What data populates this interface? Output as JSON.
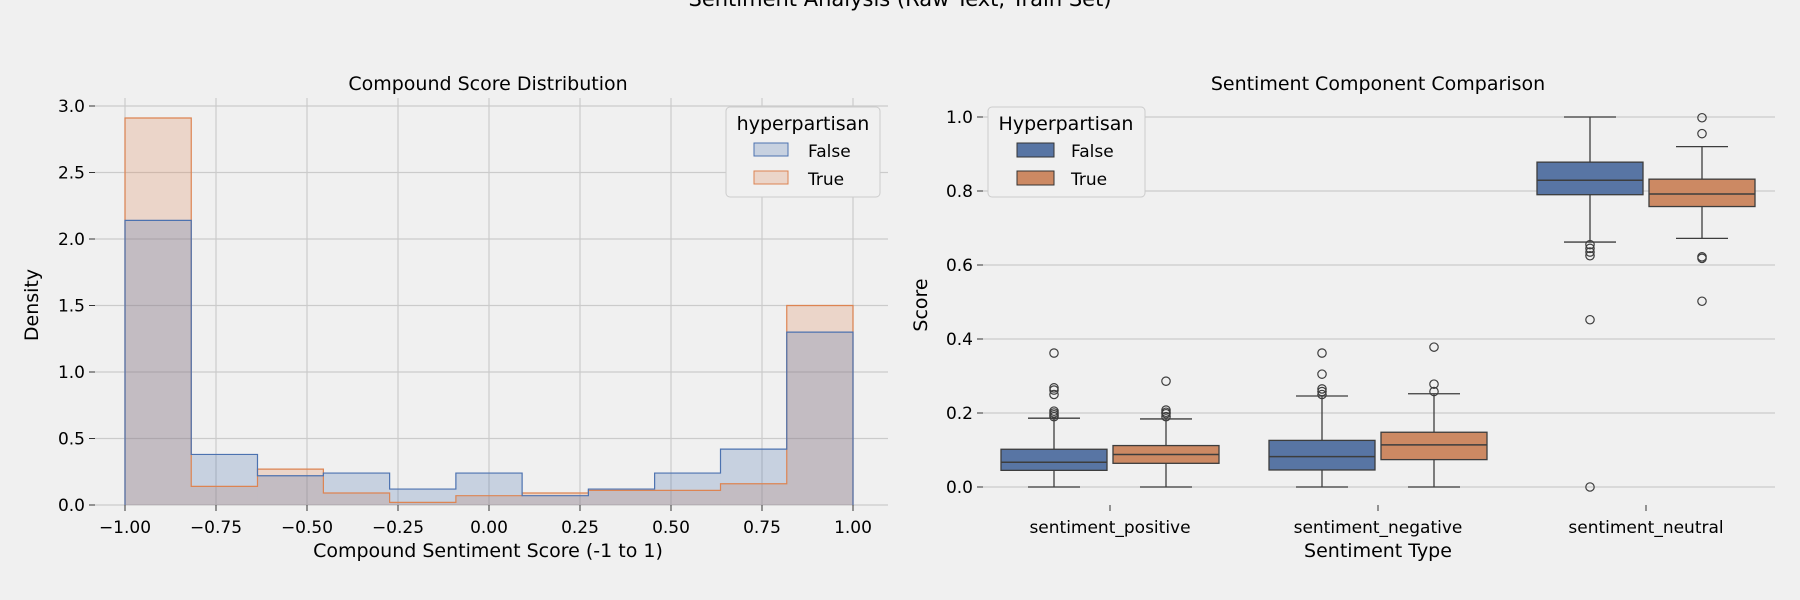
{
  "figure": {
    "suptitle": "Sentiment Analysis (Raw Text, Train Set)",
    "background": "#f0f0f0",
    "colors": {
      "false": "#4c72b0",
      "true": "#dd8452",
      "box_false": "#5875a4",
      "box_true": "#cc8963",
      "grid": "#cbcbcb"
    }
  },
  "chart_data": [
    {
      "type": "histogram",
      "title": "Compound Score Distribution",
      "xlabel": "Compound Sentiment Score (-1 to 1)",
      "ylabel": "Density",
      "xlim": [
        -1.0,
        1.0
      ],
      "ylim": [
        0,
        3.0
      ],
      "x_ticks": [
        "−1.00",
        "−0.75",
        "−0.50",
        "−0.25",
        "0.00",
        "0.25",
        "0.50",
        "0.75",
        "1.00"
      ],
      "y_ticks": [
        "0.0",
        "0.5",
        "1.0",
        "1.5",
        "2.0",
        "2.5",
        "3.0"
      ],
      "bin_edges": [
        -1.0,
        -0.818,
        -0.636,
        -0.455,
        -0.273,
        -0.091,
        0.091,
        0.273,
        0.455,
        0.636,
        0.818,
        1.0
      ],
      "legend": {
        "title": "hyperpartisan",
        "position": "top-right"
      },
      "series": [
        {
          "name": "False",
          "values": [
            2.14,
            0.38,
            0.22,
            0.24,
            0.12,
            0.24,
            0.07,
            0.12,
            0.24,
            0.42,
            1.3
          ]
        },
        {
          "name": "True",
          "values": [
            2.91,
            0.14,
            0.27,
            0.09,
            0.02,
            0.07,
            0.09,
            0.11,
            0.11,
            0.16,
            1.5
          ]
        }
      ]
    },
    {
      "type": "box",
      "title": "Sentiment Component Comparison",
      "xlabel": "Sentiment Type",
      "ylabel": "Score",
      "ylim": [
        -0.02,
        1.02
      ],
      "y_ticks": [
        "0.0",
        "0.2",
        "0.4",
        "0.6",
        "0.8",
        "1.0"
      ],
      "categories": [
        "sentiment_positive",
        "sentiment_negative",
        "sentiment_neutral"
      ],
      "legend": {
        "title": "Hyperpartisan",
        "position": "top-left"
      },
      "series": [
        {
          "name": "False",
          "boxes": [
            {
              "min": 0.0,
              "q1": 0.045,
              "median": 0.067,
              "q3": 0.102,
              "max": 0.186,
              "outliers": [
                0.19,
                0.195,
                0.2,
                0.205,
                0.25,
                0.262,
                0.268,
                0.362
              ]
            },
            {
              "min": 0.0,
              "q1": 0.046,
              "median": 0.082,
              "q3": 0.126,
              "max": 0.246,
              "outliers": [
                0.25,
                0.258,
                0.265,
                0.305,
                0.362
              ]
            },
            {
              "min": 0.662,
              "q1": 0.79,
              "median": 0.829,
              "q3": 0.878,
              "max": 1.0,
              "outliers": [
                0.655,
                0.645,
                0.635,
                0.625,
                0.452,
                0.0
              ]
            }
          ]
        },
        {
          "name": "True",
          "boxes": [
            {
              "min": 0.0,
              "q1": 0.064,
              "median": 0.088,
              "q3": 0.112,
              "max": 0.184,
              "outliers": [
                0.19,
                0.198,
                0.202,
                0.208,
                0.286
              ]
            },
            {
              "min": 0.0,
              "q1": 0.074,
              "median": 0.114,
              "q3": 0.148,
              "max": 0.252,
              "outliers": [
                0.258,
                0.278,
                0.378
              ]
            },
            {
              "min": 0.672,
              "q1": 0.758,
              "median": 0.792,
              "q3": 0.832,
              "max": 0.92,
              "outliers": [
                0.955,
                0.998,
                0.622,
                0.618,
                0.502
              ]
            }
          ]
        }
      ]
    }
  ]
}
